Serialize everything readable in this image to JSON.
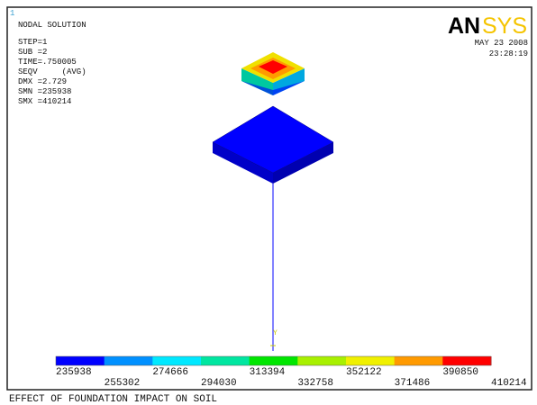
{
  "window_number": "1",
  "header": {
    "title": "NODAL SOLUTION",
    "lines": [
      "STEP=1",
      "SUB =2",
      "TIME=.750005",
      "SEQV     (AVG)",
      "DMX =2.729",
      "SMN =235938",
      "SMX =410214"
    ]
  },
  "logo": {
    "bold": "AN",
    "light": "SYS"
  },
  "date": "MAY 23 2008",
  "time": "23:28:19",
  "legend": {
    "colors": [
      "#0000ff",
      "#0090ff",
      "#00e8ff",
      "#00e6a0",
      "#00e600",
      "#a8f000",
      "#f0f000",
      "#ff9a00",
      "#ff0000"
    ],
    "labels": [
      "235938",
      "255302",
      "274666",
      "294030",
      "313394",
      "332758",
      "352122",
      "371486",
      "390850",
      "410214"
    ]
  },
  "footer": "EFFECT OF FOUNDATION IMPACT ON SOIL"
}
